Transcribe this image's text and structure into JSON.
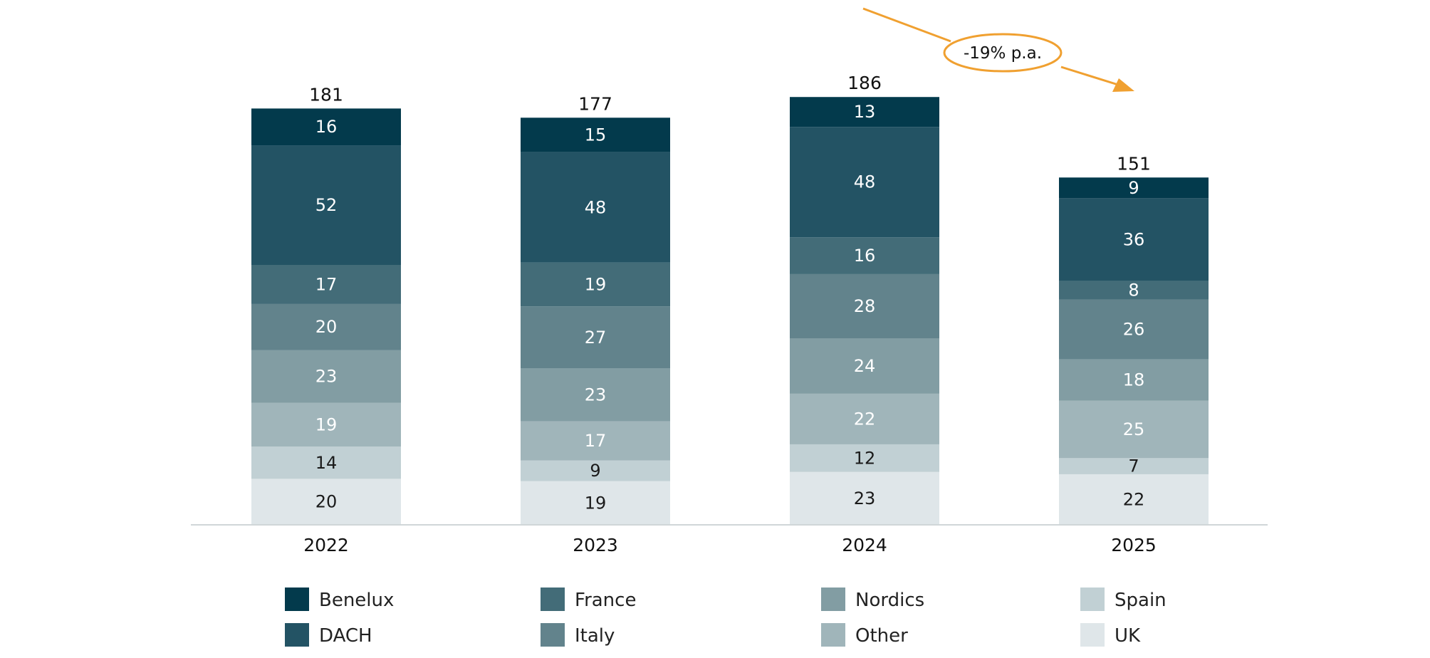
{
  "chart_data": {
    "type": "bar",
    "stacked": true,
    "categories": [
      "2022",
      "2023",
      "2024",
      "2025"
    ],
    "totals": [
      181,
      177,
      186,
      151
    ],
    "series": [
      {
        "name": "UK",
        "color": "#dfe6e9",
        "label_color": "#1a1a1a",
        "values": [
          20,
          19,
          23,
          22
        ]
      },
      {
        "name": "Spain",
        "color": "#c1d0d4",
        "label_color": "#1a1a1a",
        "values": [
          14,
          9,
          12,
          7
        ]
      },
      {
        "name": "Other",
        "color": "#a0b5ba",
        "label_color": "#ffffff",
        "values": [
          19,
          17,
          22,
          25
        ]
      },
      {
        "name": "Nordics",
        "color": "#829da3",
        "label_color": "#ffffff",
        "values": [
          23,
          23,
          24,
          18
        ]
      },
      {
        "name": "Italy",
        "color": "#62838c",
        "label_color": "#ffffff",
        "values": [
          20,
          27,
          28,
          26
        ]
      },
      {
        "name": "France",
        "color": "#436c78",
        "label_color": "#ffffff",
        "values": [
          17,
          19,
          16,
          8
        ]
      },
      {
        "name": "DACH",
        "color": "#235364",
        "label_color": "#ffffff",
        "values": [
          52,
          48,
          48,
          36
        ]
      },
      {
        "name": "Benelux",
        "color": "#033a4c",
        "label_color": "#ffffff",
        "values": [
          16,
          15,
          13,
          9
        ]
      }
    ],
    "legend_order": [
      [
        "Benelux",
        "DACH"
      ],
      [
        "France",
        "Italy"
      ],
      [
        "Nordics",
        "Other"
      ],
      [
        "Spain",
        "UK"
      ]
    ],
    "legend_position": "bottom",
    "annotation": {
      "text": "-19% p.a.",
      "color": "#f0a030",
      "from": "2024",
      "to": "2025"
    },
    "ylim": [
      0,
      186
    ],
    "grid": false,
    "title": "",
    "xlabel": "",
    "ylabel": ""
  }
}
